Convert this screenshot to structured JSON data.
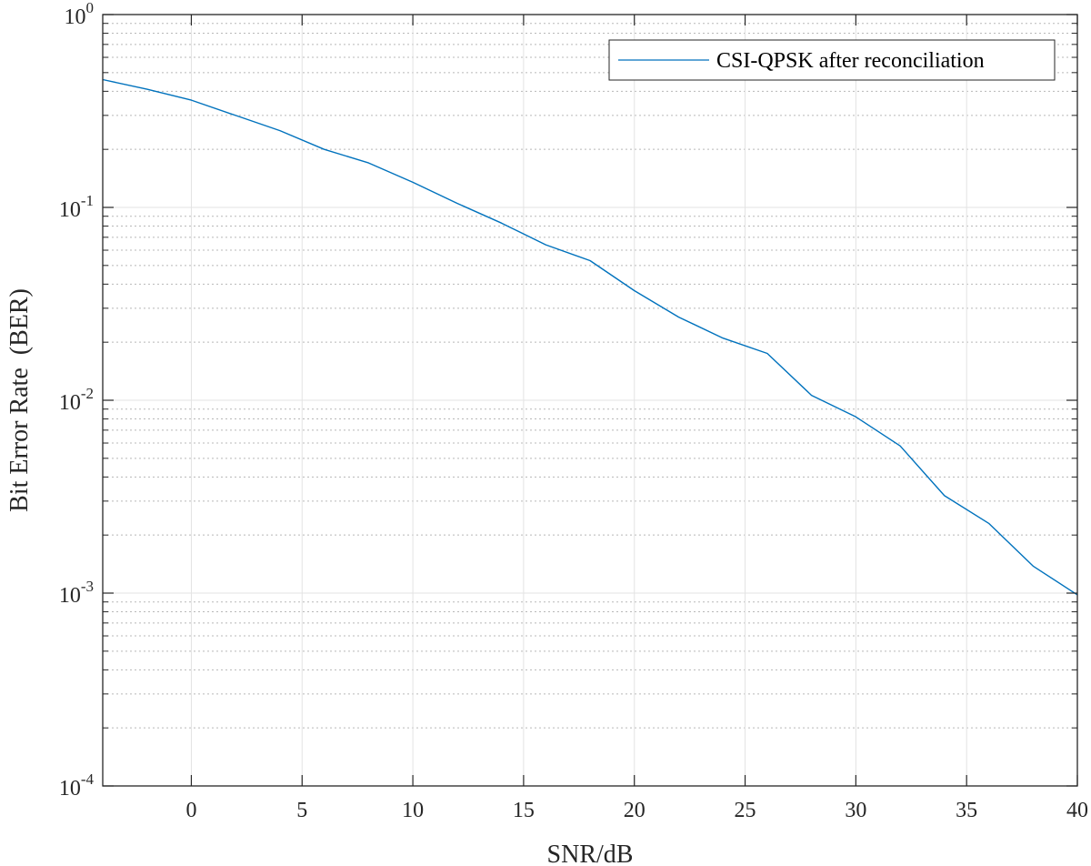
{
  "chart_data": {
    "type": "line",
    "title": "",
    "xlabel": "SNR/dB",
    "ylabel": "Bit Error Rate  (BER)",
    "xlim": [
      -4,
      40
    ],
    "ylim": [
      0.0001,
      1
    ],
    "yscale": "log",
    "grid": true,
    "legend_position": "top-right",
    "x_ticks": [
      0,
      5,
      10,
      15,
      20,
      25,
      30,
      35,
      40
    ],
    "x_tick_labels": [
      "0",
      "5",
      "10",
      "15",
      "20",
      "25",
      "30",
      "35",
      "40"
    ],
    "y_ticks": [
      {
        "value": 1,
        "base": "10",
        "exp": "0"
      },
      {
        "value": 0.1,
        "base": "10",
        "exp": "-1"
      },
      {
        "value": 0.01,
        "base": "10",
        "exp": "-2"
      },
      {
        "value": 0.001,
        "base": "10",
        "exp": "-3"
      },
      {
        "value": 0.0001,
        "base": "10",
        "exp": "-4"
      }
    ],
    "series": [
      {
        "name": "CSI-QPSK after reconciliation",
        "color": "#0072BD",
        "x": [
          -4,
          -2,
          0,
          2,
          4,
          6,
          8,
          10,
          12,
          14,
          16,
          18,
          20,
          22,
          24,
          26,
          28,
          30,
          32,
          34,
          36,
          38,
          40
        ],
        "y": [
          0.46,
          0.41,
          0.36,
          0.3,
          0.25,
          0.2,
          0.17,
          0.135,
          0.105,
          0.083,
          0.064,
          0.053,
          0.037,
          0.027,
          0.021,
          0.0175,
          0.0106,
          0.0082,
          0.0058,
          0.0032,
          0.0023,
          0.00138,
          0.00098
        ]
      }
    ]
  }
}
